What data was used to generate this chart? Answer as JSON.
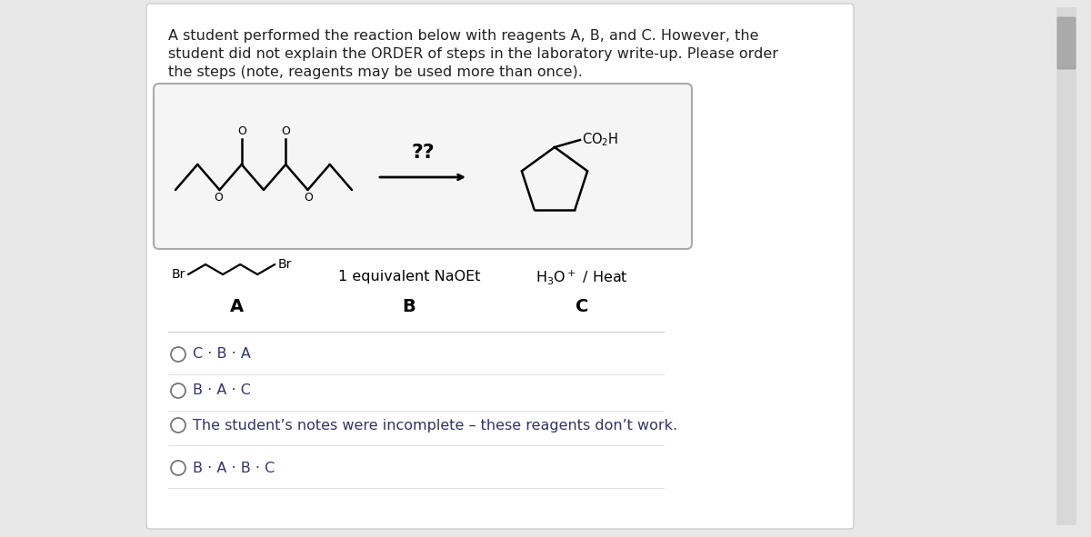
{
  "background_color": "#ffffff",
  "page_background": "#e8e8e8",
  "title_text_line1": "A student performed the reaction below with reagents A, B, and C. However, the",
  "title_text_line2": "student did not explain the ORDER of steps in the laboratory write-up. Please order",
  "title_text_line3": "the steps (note, reagents may be used more than once).",
  "title_fontsize": 11.5,
  "title_color": "#222222",
  "arrow_label": "??",
  "reagent_A_text": "1 equivalent NaOEt",
  "reagent_C_text": "H₃O⁺ / Heat",
  "options": [
    "C · B · A",
    "B · A · C",
    "The student’s notes were incomplete – these reagents don’t work.",
    "B · A · B · C"
  ],
  "option_color": "#333366",
  "option_fontsize": 11.5,
  "card_bg": "#ffffff",
  "rxn_box_bg": "#f5f5f5",
  "rxn_box_border": "#aaaaaa"
}
